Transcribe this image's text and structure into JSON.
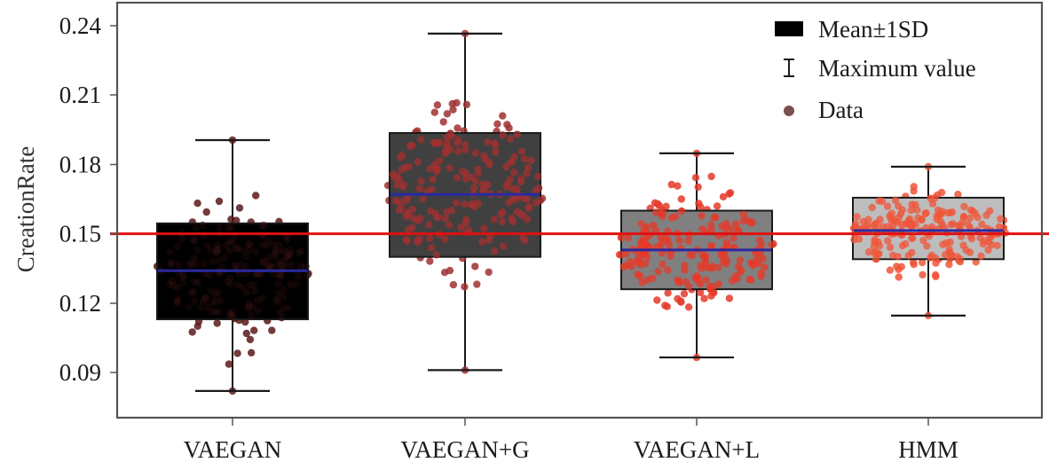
{
  "chart_data": {
    "type": "box",
    "title": "",
    "xlabel": "",
    "ylabel": "CreationRate",
    "ylim": [
      0.0733,
      0.2494
    ],
    "yticks": [
      0.09,
      0.12,
      0.15,
      0.18,
      0.21,
      0.24
    ],
    "ytick_labels": [
      "0.09",
      "0.12",
      "0.15",
      "0.18",
      "0.21",
      "0.24"
    ],
    "grid": false,
    "categories": [
      "VAEGAN",
      "VAEGAN+G",
      "VAEGAN+L",
      "HMM"
    ],
    "series": [
      {
        "name": "VAEGAN",
        "mean": 0.134,
        "sd_low": 0.113,
        "sd_high": 0.1545,
        "min": 0.082,
        "max": 0.1905,
        "box_color": "#000000",
        "point_color": "#5a1a1a",
        "n_points_approx": 200
      },
      {
        "name": "VAEGAN+G",
        "mean": 0.167,
        "sd_low": 0.14,
        "sd_high": 0.1936,
        "min": 0.091,
        "max": 0.2366,
        "box_color": "#404040",
        "point_color": "#a03030",
        "n_points_approx": 200
      },
      {
        "name": "VAEGAN+L",
        "mean": 0.143,
        "sd_low": 0.126,
        "sd_high": 0.16,
        "min": 0.0965,
        "max": 0.1848,
        "box_color": "#808080",
        "point_color": "#e53a2a",
        "n_points_approx": 200
      },
      {
        "name": "HMM",
        "mean": 0.1514,
        "sd_low": 0.139,
        "sd_high": 0.1656,
        "min": 0.1146,
        "max": 0.179,
        "box_color": "#bdbdbd",
        "point_color": "#f0553a",
        "n_points_approx": 200
      }
    ],
    "reference_line": {
      "value": 0.15,
      "color": "#e01010",
      "orientation": "horizontal"
    },
    "mean_line_color": "#2a2aa0",
    "legend": {
      "position": "upper right",
      "entries": [
        {
          "label": "Mean±1SD",
          "marker": "filled-square",
          "color": "#000000"
        },
        {
          "label": "Maximum value",
          "marker": "I-beam",
          "color": "#1a1a1a"
        },
        {
          "label": "Data",
          "marker": "circle",
          "color": "#7a5050"
        }
      ]
    }
  },
  "axes": {
    "ylabel": "CreationRate",
    "yticks": [
      "0.24",
      "0.21",
      "0.18",
      "0.15",
      "0.12",
      "0.09"
    ],
    "categories": [
      "VAEGAN",
      "VAEGAN+G",
      "VAEGAN+L",
      "HMM"
    ]
  },
  "legend": {
    "items": [
      {
        "label": "Mean±1SD"
      },
      {
        "label": "Maximum value"
      },
      {
        "label": "Data"
      }
    ]
  }
}
